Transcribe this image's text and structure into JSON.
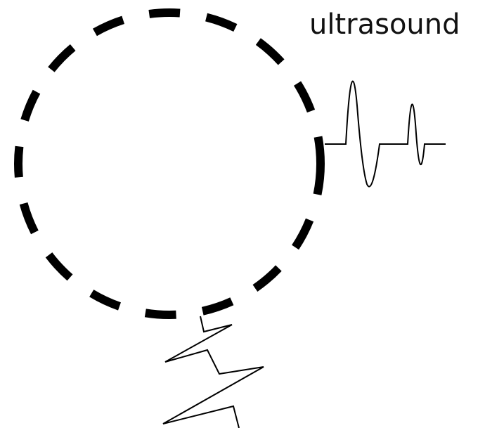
{
  "label": "ultrasound"
}
